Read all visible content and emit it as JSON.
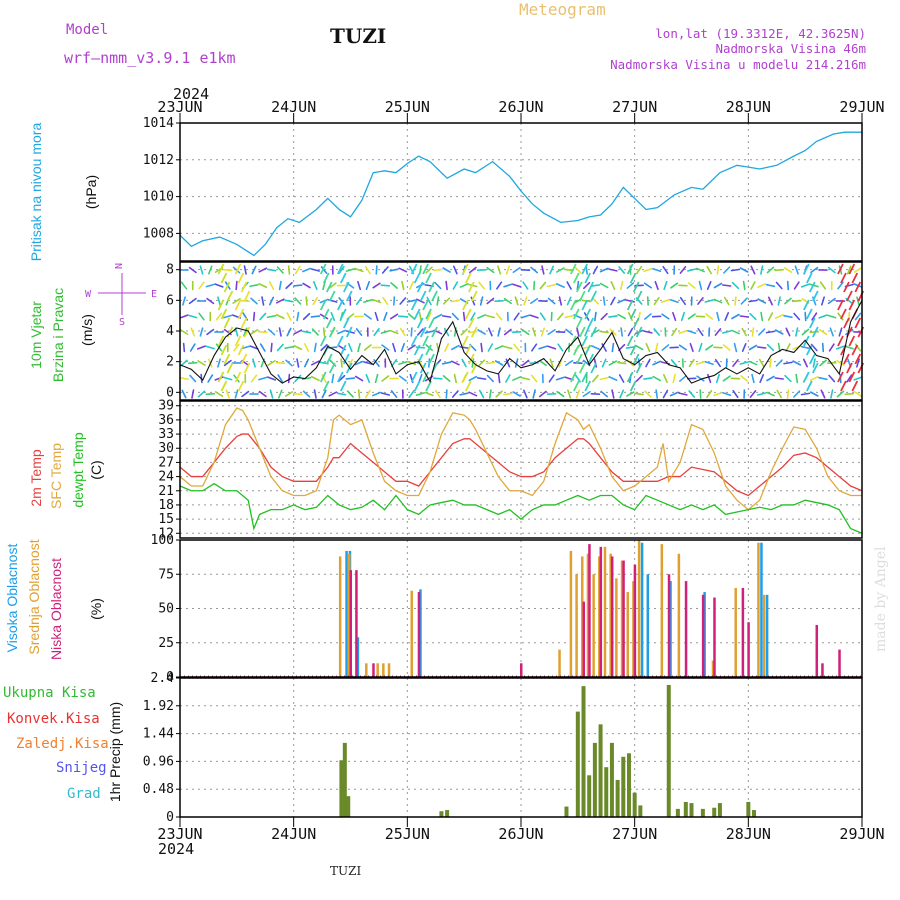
{
  "header": {
    "model_label": "Model",
    "model_name": "wrf—nmm_v3.9.1  e1km",
    "station": "TUZI",
    "title": "Meteogram",
    "lonlat": "lon,lat (19.3312E, 42.3625N)",
    "altitude": "Nadmorska Visina 46m",
    "model_altitude": "Nadmorska Visina u modelu 214.216m",
    "year": "2024",
    "footer_station": "TUZI",
    "credit": "made by Angel"
  },
  "x_axis": {
    "ticks": [
      "23JUN",
      "24JUN",
      "25JUN",
      "26JUN",
      "27JUN",
      "28JUN",
      "29JUN"
    ],
    "year": "2024"
  },
  "panels": {
    "pressure": {
      "label": "Pritisak na nivou mora",
      "unit": "(hPa)"
    },
    "wind": {
      "label1": "10m Vjetar",
      "label2": "Brzina i Pravac",
      "unit": "(m/s)",
      "compass": [
        "N",
        "W",
        "E",
        "S"
      ]
    },
    "temp": {
      "label_2m": "2m Temp",
      "label_sfc": "SFC Temp",
      "label_dew": "dewpt Temp",
      "unit": "(C)"
    },
    "cloud": {
      "label_high": "Visoka Oblacnost",
      "label_mid": "Srednja Oblacnost",
      "label_low": "Niska Oblacnost",
      "unit": "(%)"
    },
    "precip": {
      "label": "1hr Precip (mm)",
      "legend": [
        "Ukupna Kisa",
        "Konvek.Kisa",
        "Zaledj.Kisa",
        "Snijeg",
        "Grad"
      ]
    }
  },
  "colors": {
    "pressure": "#1fa7e0",
    "t2m": "#e8403c",
    "tsfc": "#e0a83c",
    "dewpt": "#22c022",
    "cloud_high": "#1e9ee8",
    "cloud_mid": "#e0a030",
    "cloud_low": "#d0207a",
    "precip_total": "#6a8a2a",
    "label_green": "#33bb33",
    "label_red": "#e83333",
    "label_orange": "#f08030",
    "label_blue": "#5555ee",
    "label_cyan": "#33bbcc",
    "purple": "#b040d0",
    "title_gold": "#e8c070"
  },
  "chart_data": [
    {
      "type": "line",
      "title": "",
      "ylabel": "Pritisak na nivou mora (hPa)",
      "ylim": [
        1006.5,
        1014
      ],
      "yticks": [
        "1008",
        "1010",
        "1012",
        "1014"
      ],
      "series": [
        {
          "name": "Pritisak na nivou mora",
          "x": [
            0,
            0.1,
            0.2,
            0.35,
            0.5,
            0.65,
            0.75,
            0.85,
            0.95,
            1.05,
            1.2,
            1.3,
            1.4,
            1.5,
            1.6,
            1.7,
            1.8,
            1.9,
            2.0,
            2.1,
            2.2,
            2.35,
            2.5,
            2.6,
            2.75,
            2.9,
            3.0,
            3.1,
            3.2,
            3.35,
            3.5,
            3.6,
            3.7,
            3.8,
            3.9,
            4.0,
            4.1,
            4.2,
            4.35,
            4.5,
            4.6,
            4.75,
            4.9,
            5.0,
            5.1,
            5.25,
            5.4,
            5.5,
            5.6,
            5.75,
            5.85,
            5.95,
            6.0
          ],
          "y": [
            1007.9,
            1007.3,
            1007.6,
            1007.8,
            1007.4,
            1006.8,
            1007.4,
            1008.3,
            1008.8,
            1008.6,
            1009.3,
            1009.9,
            1009.3,
            1008.9,
            1009.8,
            1011.3,
            1011.4,
            1011.3,
            1011.8,
            1012.2,
            1011.9,
            1011.0,
            1011.5,
            1011.3,
            1011.9,
            1011.1,
            1010.3,
            1009.6,
            1009.1,
            1008.6,
            1008.7,
            1008.9,
            1009.0,
            1009.6,
            1010.5,
            1009.9,
            1009.3,
            1009.4,
            1010.1,
            1010.5,
            1010.4,
            1011.3,
            1011.7,
            1011.6,
            1011.5,
            1011.7,
            1012.2,
            1012.5,
            1013.0,
            1013.4,
            1013.5,
            1013.5,
            1013.5
          ]
        }
      ]
    },
    {
      "type": "line",
      "title": "",
      "ylabel": "10m Vjetar Brzina i Pravac (m/s)",
      "ylim": [
        -0.5,
        8.5
      ],
      "yticks": [
        "0",
        "2",
        "4",
        "6",
        "8"
      ],
      "series": [
        {
          "name": "",
          "x": [
            0,
            0.1,
            0.2,
            0.3,
            0.4,
            0.5,
            0.6,
            0.7,
            0.8,
            0.9,
            1.0,
            1.1,
            1.2,
            1.3,
            1.4,
            1.5,
            1.6,
            1.7,
            1.8,
            1.9,
            2.0,
            2.1,
            2.2,
            2.3,
            2.4,
            2.5,
            2.6,
            2.7,
            2.8,
            2.9,
            3.0,
            3.1,
            3.2,
            3.3,
            3.4,
            3.5,
            3.6,
            3.7,
            3.8,
            3.9,
            4.0,
            4.1,
            4.2,
            4.3,
            4.4,
            4.5,
            4.6,
            4.7,
            4.8,
            4.9,
            5.0,
            5.1,
            5.2,
            5.3,
            5.4,
            5.5,
            5.6,
            5.7,
            5.8,
            5.9,
            6.0
          ],
          "y": [
            1.8,
            1.5,
            0.8,
            2.4,
            3.6,
            4.2,
            4.0,
            2.6,
            1.2,
            0.6,
            1.0,
            0.9,
            1.6,
            3.0,
            2.6,
            1.5,
            2.4,
            1.8,
            2.8,
            1.2,
            1.8,
            2.0,
            0.7,
            3.5,
            4.6,
            2.6,
            1.8,
            1.4,
            1.2,
            2.2,
            1.6,
            1.8,
            2.2,
            1.4,
            2.8,
            3.6,
            1.8,
            2.8,
            3.9,
            2.2,
            1.8,
            2.4,
            2.6,
            1.8,
            1.6,
            0.6,
            0.9,
            1.1,
            1.6,
            1.2,
            1.6,
            1.2,
            2.4,
            2.8,
            2.6,
            3.4,
            2.4,
            2.2,
            1.2,
            4.6,
            6.0
          ]
        }
      ]
    },
    {
      "type": "line",
      "title": "",
      "ylabel": "Temp (C)",
      "ylim": [
        11,
        40
      ],
      "yticks": [
        "12",
        "15",
        "18",
        "21",
        "24",
        "27",
        "30",
        "33",
        "36",
        "39"
      ],
      "series": [
        {
          "name": "2m Temp",
          "x": [
            0,
            0.1,
            0.2,
            0.3,
            0.4,
            0.5,
            0.55,
            0.6,
            0.7,
            0.8,
            0.9,
            1.0,
            1.1,
            1.2,
            1.3,
            1.35,
            1.4,
            1.5,
            1.6,
            1.7,
            1.8,
            1.9,
            2.0,
            2.1,
            2.2,
            2.3,
            2.4,
            2.5,
            2.55,
            2.6,
            2.7,
            2.8,
            2.9,
            3.0,
            3.1,
            3.2,
            3.3,
            3.4,
            3.5,
            3.55,
            3.6,
            3.7,
            3.8,
            3.9,
            4.0,
            4.1,
            4.2,
            4.3,
            4.4,
            4.5,
            4.6,
            4.7,
            4.8,
            4.9,
            5.0,
            5.1,
            5.2,
            5.3,
            5.4,
            5.5,
            5.6,
            5.7,
            5.8,
            5.9,
            6.0
          ],
          "y": [
            26,
            24,
            24,
            27,
            30,
            32.5,
            33,
            33,
            30,
            26,
            24,
            23,
            23,
            23,
            26,
            28,
            28,
            31,
            29,
            27,
            25,
            23,
            23,
            22,
            25,
            28,
            31,
            32,
            32,
            31,
            29,
            27,
            25,
            24,
            24,
            25,
            28,
            30,
            32,
            32,
            31,
            28,
            25,
            23,
            23,
            23,
            23,
            24,
            24,
            26,
            25.5,
            25,
            23,
            21,
            20,
            22,
            24,
            26,
            28.5,
            29,
            28,
            26,
            24,
            22,
            21
          ]
        },
        {
          "name": "SFC Temp",
          "x": [
            0,
            0.1,
            0.2,
            0.3,
            0.4,
            0.5,
            0.55,
            0.6,
            0.7,
            0.8,
            0.9,
            1.0,
            1.1,
            1.2,
            1.3,
            1.35,
            1.4,
            1.5,
            1.6,
            1.7,
            1.8,
            1.9,
            2.0,
            2.1,
            2.2,
            2.3,
            2.4,
            2.5,
            2.55,
            2.6,
            2.7,
            2.8,
            2.9,
            3.0,
            3.1,
            3.2,
            3.3,
            3.4,
            3.5,
            3.55,
            3.6,
            3.7,
            3.8,
            3.9,
            4.0,
            4.1,
            4.2,
            4.25,
            4.3,
            4.4,
            4.5,
            4.6,
            4.7,
            4.8,
            4.9,
            5.0,
            5.1,
            5.2,
            5.3,
            5.4,
            5.5,
            5.6,
            5.7,
            5.8,
            5.9,
            6.0
          ],
          "y": [
            24,
            22,
            22,
            27,
            35,
            38.5,
            38,
            36,
            30,
            24,
            21,
            20,
            20,
            21,
            28,
            36,
            37,
            35,
            36,
            29,
            23,
            21,
            20,
            20,
            25,
            33,
            37.5,
            37,
            36,
            34,
            29,
            24,
            21,
            21,
            20,
            23,
            31,
            37.5,
            36,
            34,
            35,
            30,
            24,
            21,
            22,
            24,
            26,
            31,
            23,
            27,
            35,
            34,
            29,
            22,
            19,
            17,
            19,
            25,
            30,
            34.5,
            34,
            30,
            24,
            21,
            20,
            20
          ]
        },
        {
          "name": "dewpt Temp",
          "x": [
            0,
            0.1,
            0.2,
            0.3,
            0.4,
            0.5,
            0.6,
            0.65,
            0.7,
            0.8,
            0.9,
            1.0,
            1.1,
            1.2,
            1.3,
            1.4,
            1.5,
            1.6,
            1.7,
            1.8,
            1.9,
            2.0,
            2.1,
            2.2,
            2.3,
            2.4,
            2.5,
            2.6,
            2.7,
            2.8,
            2.9,
            3.0,
            3.1,
            3.2,
            3.3,
            3.4,
            3.5,
            3.6,
            3.7,
            3.8,
            3.9,
            4.0,
            4.1,
            4.2,
            4.3,
            4.4,
            4.5,
            4.6,
            4.7,
            4.8,
            4.9,
            5.0,
            5.1,
            5.2,
            5.3,
            5.4,
            5.5,
            5.6,
            5.7,
            5.8,
            5.9,
            6.0
          ],
          "y": [
            22,
            21,
            21,
            22.5,
            21,
            21,
            19,
            13,
            16,
            17,
            17,
            18,
            17,
            17.5,
            20,
            18,
            17,
            17.5,
            19,
            17,
            20,
            17,
            16,
            18,
            18.5,
            19,
            18,
            18,
            17,
            16,
            17,
            15,
            17,
            18,
            18,
            19,
            20,
            19,
            20,
            20,
            18,
            17,
            20,
            19,
            18,
            17,
            18,
            17,
            18,
            16,
            16.5,
            17,
            17.5,
            17,
            18,
            18,
            19,
            18.5,
            18,
            17,
            13,
            12
          ]
        }
      ]
    },
    {
      "type": "bar",
      "title": "",
      "ylabel": "Oblacnost (%)",
      "ylim": [
        0,
        100
      ],
      "yticks": [
        "0",
        "25",
        "50",
        "75",
        "100"
      ],
      "series": [
        {
          "name": "Visoka Oblacnost",
          "x": [
            1.45,
            1.48,
            1.55,
            2.1,
            4.05,
            4.1,
            4.3,
            4.6,
            5.1,
            5.15
          ],
          "y": [
            92,
            92,
            29,
            64,
            98,
            75,
            70,
            62,
            98,
            60
          ]
        },
        {
          "name": "Srednja Oblacnost",
          "x": [
            1.42,
            1.5,
            1.65,
            1.75,
            1.8,
            1.85,
            2.05,
            3.35,
            3.45,
            3.5,
            3.55,
            3.6,
            3.65,
            3.7,
            3.75,
            3.8,
            3.85,
            3.9,
            3.95,
            4.0,
            4.05,
            4.25,
            4.4,
            4.7,
            4.9,
            5.1,
            5.15
          ],
          "y": [
            88,
            90,
            10,
            10,
            10,
            10,
            63,
            20,
            92,
            75,
            88,
            90,
            75,
            88,
            95,
            90,
            72,
            85,
            62,
            70,
            100,
            97,
            90,
            12,
            65,
            98,
            60
          ]
        },
        {
          "name": "Niska Oblacnost",
          "x": [
            1.5,
            1.55,
            1.7,
            2.1,
            3.0,
            3.55,
            3.6,
            3.7,
            3.8,
            3.9,
            4.0,
            4.3,
            4.45,
            4.6,
            4.7,
            4.95,
            5.0,
            5.6,
            5.65,
            5.8
          ],
          "y": [
            78,
            78,
            10,
            62,
            10,
            55,
            97,
            95,
            88,
            85,
            82,
            75,
            70,
            60,
            58,
            65,
            40,
            38,
            10,
            20
          ]
        }
      ]
    },
    {
      "type": "bar",
      "title": "",
      "ylabel": "1hr Precip (mm)",
      "ylim": [
        0,
        2.4
      ],
      "yticks": [
        "0",
        "0.48",
        "0.96",
        "1.44",
        "1.92",
        "2.4"
      ],
      "series": [
        {
          "name": "Ukupna Kisa",
          "x": [
            1.42,
            1.45,
            1.48,
            2.3,
            2.35,
            3.4,
            3.5,
            3.55,
            3.6,
            3.65,
            3.7,
            3.75,
            3.8,
            3.85,
            3.9,
            3.95,
            4.0,
            4.05,
            4.3,
            4.38,
            4.45,
            4.5,
            4.6,
            4.7,
            4.75,
            5.0,
            5.05
          ],
          "y": [
            0.98,
            1.28,
            0.36,
            0.1,
            0.12,
            0.18,
            1.82,
            2.26,
            0.72,
            1.28,
            1.6,
            0.86,
            1.28,
            0.64,
            1.04,
            1.1,
            0.42,
            0.2,
            2.28,
            0.14,
            0.26,
            0.24,
            0.14,
            0.16,
            0.24,
            0.26,
            0.12
          ]
        }
      ]
    }
  ]
}
